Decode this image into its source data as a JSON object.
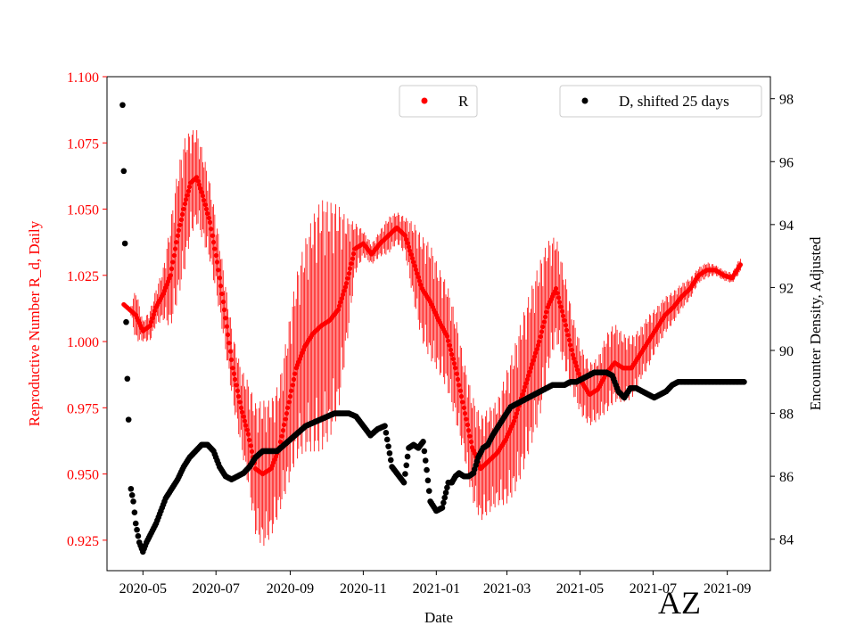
{
  "chart_data": {
    "type": "scatter",
    "title": "",
    "xlabel": "Date",
    "ylabel_left": "Reproductive Number R_d, Daily",
    "ylabel_right": "Encounter Density, Adjusted",
    "corner_label": "AZ",
    "x_ticks": [
      "2020-05",
      "2020-07",
      "2020-09",
      "2020-11",
      "2021-01",
      "2021-03",
      "2021-05",
      "2021-07",
      "2021-09"
    ],
    "y_left_ticks": [
      "0.925",
      "0.950",
      "0.975",
      "1.000",
      "1.025",
      "1.050",
      "1.075",
      "1.100"
    ],
    "y_right_ticks": [
      "84",
      "86",
      "88",
      "90",
      "92",
      "94",
      "96",
      "98"
    ],
    "y_left_range": [
      0.9135,
      1.1
    ],
    "y_right_range": [
      83.0,
      98.7
    ],
    "x_range": [
      "2020-04-01",
      "2021-10-07"
    ],
    "grid": false,
    "colors": {
      "R": "#ff0000",
      "D": "#000000",
      "left_axis": "#ff0000",
      "right_axis": "#000000"
    },
    "legends": [
      {
        "label": "R",
        "color": "#ff0000",
        "position": "upper-center"
      },
      {
        "label": "D, shifted 25 days",
        "color": "#000000",
        "position": "upper-right"
      }
    ],
    "series": [
      {
        "name": "R",
        "axis": "left",
        "color": "#ff0000",
        "style": "points with error bars",
        "x": [
          "2020-04-15",
          "2020-04-20",
          "2020-04-25",
          "2020-05-01",
          "2020-05-07",
          "2020-05-12",
          "2020-05-18",
          "2020-05-24",
          "2020-05-30",
          "2020-06-05",
          "2020-06-10",
          "2020-06-15",
          "2020-06-20",
          "2020-06-26",
          "2020-07-02",
          "2020-07-08",
          "2020-07-15",
          "2020-07-22",
          "2020-07-28",
          "2020-08-03",
          "2020-08-09",
          "2020-08-16",
          "2020-08-23",
          "2020-08-30",
          "2020-09-06",
          "2020-09-13",
          "2020-09-20",
          "2020-09-27",
          "2020-10-04",
          "2020-10-11",
          "2020-10-18",
          "2020-10-25",
          "2020-11-01",
          "2020-11-08",
          "2020-11-15",
          "2020-11-22",
          "2020-11-29",
          "2020-12-06",
          "2020-12-13",
          "2020-12-20",
          "2020-12-27",
          "2021-01-03",
          "2021-01-10",
          "2021-01-17",
          "2021-01-24",
          "2021-01-31",
          "2021-02-07",
          "2021-02-14",
          "2021-02-21",
          "2021-02-28",
          "2021-03-07",
          "2021-03-14",
          "2021-03-21",
          "2021-03-28",
          "2021-04-04",
          "2021-04-11",
          "2021-04-18",
          "2021-04-25",
          "2021-05-02",
          "2021-05-09",
          "2021-05-16",
          "2021-05-23",
          "2021-05-30",
          "2021-06-06",
          "2021-06-13",
          "2021-06-20",
          "2021-06-27",
          "2021-07-04",
          "2021-07-11",
          "2021-07-18",
          "2021-07-25",
          "2021-08-01",
          "2021-08-08",
          "2021-08-15",
          "2021-08-22",
          "2021-08-29",
          "2021-09-05",
          "2021-09-12"
        ],
        "y": [
          1.014,
          1.012,
          1.01,
          1.004,
          1.006,
          1.013,
          1.018,
          1.025,
          1.04,
          1.052,
          1.06,
          1.062,
          1.055,
          1.045,
          1.03,
          1.012,
          0.99,
          0.975,
          0.965,
          0.952,
          0.95,
          0.952,
          0.96,
          0.975,
          0.99,
          0.998,
          1.003,
          1.006,
          1.008,
          1.012,
          1.022,
          1.035,
          1.037,
          1.033,
          1.037,
          1.04,
          1.043,
          1.04,
          1.03,
          1.02,
          1.015,
          1.008,
          1.002,
          0.99,
          0.975,
          0.96,
          0.952,
          0.955,
          0.958,
          0.963,
          0.97,
          0.98,
          0.99,
          1.0,
          1.013,
          1.02,
          1.008,
          0.995,
          0.985,
          0.98,
          0.982,
          0.988,
          0.992,
          0.99,
          0.99,
          0.995,
          1.0,
          1.005,
          1.01,
          1.013,
          1.017,
          1.02,
          1.025,
          1.027,
          1.027,
          1.025,
          1.024,
          1.029
        ],
        "err": [
          0,
          0,
          0.01,
          0.004,
          0.006,
          0.007,
          0.01,
          0.02,
          0.025,
          0.025,
          0.02,
          0.018,
          0.017,
          0.015,
          0.014,
          0.013,
          0.013,
          0.015,
          0.02,
          0.025,
          0.028,
          0.026,
          0.025,
          0.03,
          0.035,
          0.04,
          0.045,
          0.048,
          0.045,
          0.04,
          0.025,
          0.01,
          0.005,
          0.004,
          0.005,
          0.007,
          0.006,
          0.007,
          0.015,
          0.02,
          0.022,
          0.02,
          0.02,
          0.02,
          0.018,
          0.02,
          0.02,
          0.02,
          0.02,
          0.025,
          0.028,
          0.03,
          0.03,
          0.03,
          0.025,
          0.02,
          0.018,
          0.015,
          0.013,
          0.012,
          0.012,
          0.015,
          0.015,
          0.013,
          0.012,
          0.01,
          0.01,
          0.008,
          0.007,
          0.006,
          0.005,
          0.004,
          0.003,
          0.003,
          0.002,
          0.002,
          0.002,
          0.003
        ]
      },
      {
        "name": "D, shifted 25 days",
        "axis": "right",
        "color": "#000000",
        "style": "points",
        "x": [
          "2020-04-14",
          "2020-04-15",
          "2020-04-16",
          "2020-04-17",
          "2020-04-18",
          "2020-04-19",
          "2020-04-21",
          "2020-04-23",
          "2020-04-25",
          "2020-04-28",
          "2020-05-01",
          "2020-05-04",
          "2020-05-08",
          "2020-05-12",
          "2020-05-16",
          "2020-05-20",
          "2020-05-25",
          "2020-05-30",
          "2020-06-04",
          "2020-06-09",
          "2020-06-14",
          "2020-06-19",
          "2020-06-24",
          "2020-06-29",
          "2020-07-04",
          "2020-07-09",
          "2020-07-14",
          "2020-07-19",
          "2020-07-24",
          "2020-07-29",
          "2020-08-03",
          "2020-08-09",
          "2020-08-15",
          "2020-08-21",
          "2020-08-27",
          "2020-09-02",
          "2020-09-08",
          "2020-09-14",
          "2020-09-20",
          "2020-09-26",
          "2020-10-02",
          "2020-10-08",
          "2020-10-14",
          "2020-10-20",
          "2020-10-26",
          "2020-11-01",
          "2020-11-07",
          "2020-11-13",
          "2020-11-19",
          "2020-11-25",
          "2020-12-01",
          "2020-12-05",
          "2020-12-09",
          "2020-12-13",
          "2020-12-17",
          "2020-12-21",
          "2020-12-24",
          "2020-12-27",
          "2021-01-01",
          "2021-01-06",
          "2021-01-11",
          "2021-01-14",
          "2021-01-17",
          "2021-01-20",
          "2021-01-24",
          "2021-01-28",
          "2021-02-01",
          "2021-02-05",
          "2021-02-09",
          "2021-02-13",
          "2021-02-17",
          "2021-02-22",
          "2021-02-27",
          "2021-03-04",
          "2021-03-09",
          "2021-03-14",
          "2021-03-19",
          "2021-03-24",
          "2021-03-29",
          "2021-04-03",
          "2021-04-08",
          "2021-04-13",
          "2021-04-18",
          "2021-04-23",
          "2021-04-28",
          "2021-05-03",
          "2021-05-08",
          "2021-05-13",
          "2021-05-18",
          "2021-05-23",
          "2021-05-28",
          "2021-06-02",
          "2021-06-07",
          "2021-06-12",
          "2021-06-17",
          "2021-06-22",
          "2021-06-27",
          "2021-07-02",
          "2021-07-07",
          "2021-07-12",
          "2021-07-17",
          "2021-07-22",
          "2021-07-27",
          "2021-08-01",
          "2021-08-06",
          "2021-08-11",
          "2021-08-16",
          "2021-08-21",
          "2021-08-26",
          "2021-08-31",
          "2021-09-05",
          "2021-09-10",
          "2021-09-15"
        ],
        "y": [
          97.8,
          95.7,
          93.4,
          90.9,
          89.1,
          87.8,
          85.6,
          85.2,
          84.5,
          83.9,
          83.6,
          83.9,
          84.2,
          84.5,
          84.9,
          85.3,
          85.6,
          85.9,
          86.3,
          86.6,
          86.8,
          87.0,
          87.0,
          86.8,
          86.3,
          86.0,
          85.9,
          86.0,
          86.1,
          86.3,
          86.6,
          86.8,
          86.8,
          86.8,
          87.0,
          87.2,
          87.4,
          87.6,
          87.7,
          87.8,
          87.9,
          88.0,
          88.0,
          88.0,
          87.9,
          87.6,
          87.3,
          87.5,
          87.6,
          86.3,
          86.0,
          85.8,
          86.9,
          87.0,
          86.9,
          87.1,
          86.2,
          85.2,
          84.9,
          85.0,
          85.8,
          85.8,
          86.0,
          86.1,
          86.0,
          86.0,
          86.1,
          86.6,
          86.9,
          87.0,
          87.3,
          87.6,
          87.9,
          88.2,
          88.3,
          88.4,
          88.5,
          88.6,
          88.7,
          88.8,
          88.9,
          88.9,
          88.9,
          89.0,
          89.0,
          89.1,
          89.2,
          89.3,
          89.3,
          89.3,
          89.2,
          88.7,
          88.5,
          88.8,
          88.8,
          88.7,
          88.6,
          88.5,
          88.6,
          88.7,
          88.9,
          89.0,
          89.0,
          89.0,
          89.0,
          89.0,
          89.0,
          89.0,
          89.0,
          89.0,
          89.0,
          89.0,
          89.0
        ]
      }
    ]
  }
}
